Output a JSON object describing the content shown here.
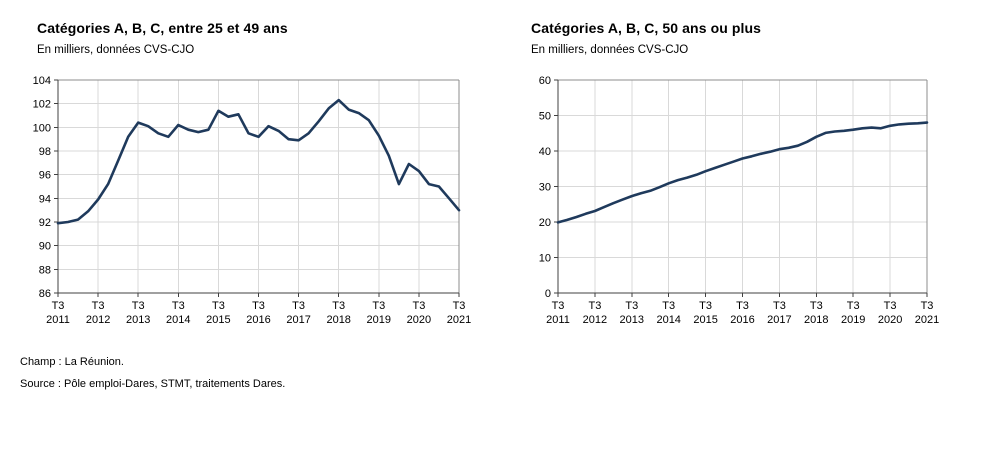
{
  "page": {
    "background": "#ffffff"
  },
  "chart_data": [
    {
      "type": "line",
      "title": "Catégories A, B, C, entre 25 et 49 ans",
      "subtitle": "En milliers, données CVS-CJO",
      "x_quarter_label": "T3",
      "x_years": [
        "2011",
        "2012",
        "2013",
        "2014",
        "2015",
        "2016",
        "2017",
        "2018",
        "2019",
        "2020",
        "2021"
      ],
      "values": [
        91.9,
        92.0,
        92.2,
        92.9,
        93.9,
        95.2,
        97.2,
        99.2,
        100.4,
        100.1,
        99.5,
        99.2,
        100.2,
        99.8,
        99.6,
        99.8,
        101.4,
        100.9,
        101.1,
        99.5,
        99.2,
        100.1,
        99.7,
        99.0,
        98.9,
        99.5,
        100.5,
        101.6,
        102.3,
        101.5,
        101.2,
        100.6,
        99.3,
        97.6,
        95.2,
        96.9,
        96.3,
        95.2,
        95.0,
        94.0,
        93.0
      ],
      "ylim": [
        86,
        104
      ],
      "ytick_step": 2,
      "grid": true,
      "legend": "none",
      "line_color": "#1f3a5c",
      "grid_color": "#d9d9d9",
      "frame_color": "#8c8c8c",
      "axis_color": "#404040"
    },
    {
      "type": "line",
      "title": "Catégories A, B, C, 50 ans ou plus",
      "subtitle": "En milliers, données CVS-CJO",
      "x_quarter_label": "T3",
      "x_years": [
        "2011",
        "2012",
        "2013",
        "2014",
        "2015",
        "2016",
        "2017",
        "2018",
        "2019",
        "2020",
        "2021"
      ],
      "values": [
        19.9,
        20.6,
        21.4,
        22.3,
        23.1,
        24.2,
        25.3,
        26.3,
        27.3,
        28.1,
        28.8,
        29.8,
        30.9,
        31.8,
        32.5,
        33.3,
        34.3,
        35.2,
        36.1,
        37.0,
        37.9,
        38.5,
        39.2,
        39.8,
        40.5,
        40.9,
        41.5,
        42.6,
        44.0,
        45.1,
        45.5,
        45.7,
        46.0,
        46.4,
        46.6,
        46.4,
        47.1,
        47.5,
        47.7,
        47.8,
        48.0
      ],
      "ylim": [
        0,
        60
      ],
      "ytick_step": 10,
      "grid": true,
      "legend": "none",
      "line_color": "#1f3a5c",
      "grid_color": "#d9d9d9",
      "frame_color": "#8c8c8c",
      "axis_color": "#404040"
    }
  ],
  "footer": {
    "champ": "Champ : La Réunion.",
    "source": "Source : Pôle emploi-Dares, STMT, traitements Dares."
  }
}
